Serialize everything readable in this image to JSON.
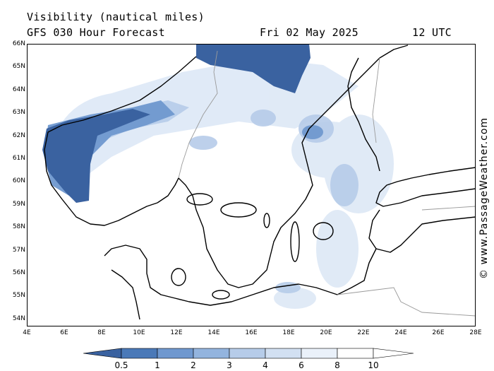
{
  "header": {
    "title": "Visibility (nautical miles)",
    "model": "GFS 030 Hour Forecast",
    "date": "Fri 02 May 2025",
    "time": "12 UTC"
  },
  "credit": "© www.PassageWeather.com",
  "lat_labels": [
    "66N",
    "65N",
    "64N",
    "63N",
    "62N",
    "61N",
    "60N",
    "59N",
    "58N",
    "57N",
    "56N",
    "55N",
    "54N"
  ],
  "lon_labels": [
    "4E",
    "6E",
    "8E",
    "10E",
    "12E",
    "14E",
    "16E",
    "18E",
    "20E",
    "22E",
    "24E",
    "26E",
    "28E"
  ],
  "colorbar": {
    "labels": [
      "0.5",
      "1",
      "2",
      "3",
      "4",
      "6",
      "8",
      "10"
    ],
    "colors": [
      "#3a62a0",
      "#4a79b8",
      "#6f98cf",
      "#93b4de",
      "#b6cce9",
      "#d2e0f2",
      "#eaf1fa",
      "#ffffff"
    ]
  },
  "colors": {
    "land": "#ffffff",
    "coast": "#000000",
    "border": "#9a9a9a"
  }
}
